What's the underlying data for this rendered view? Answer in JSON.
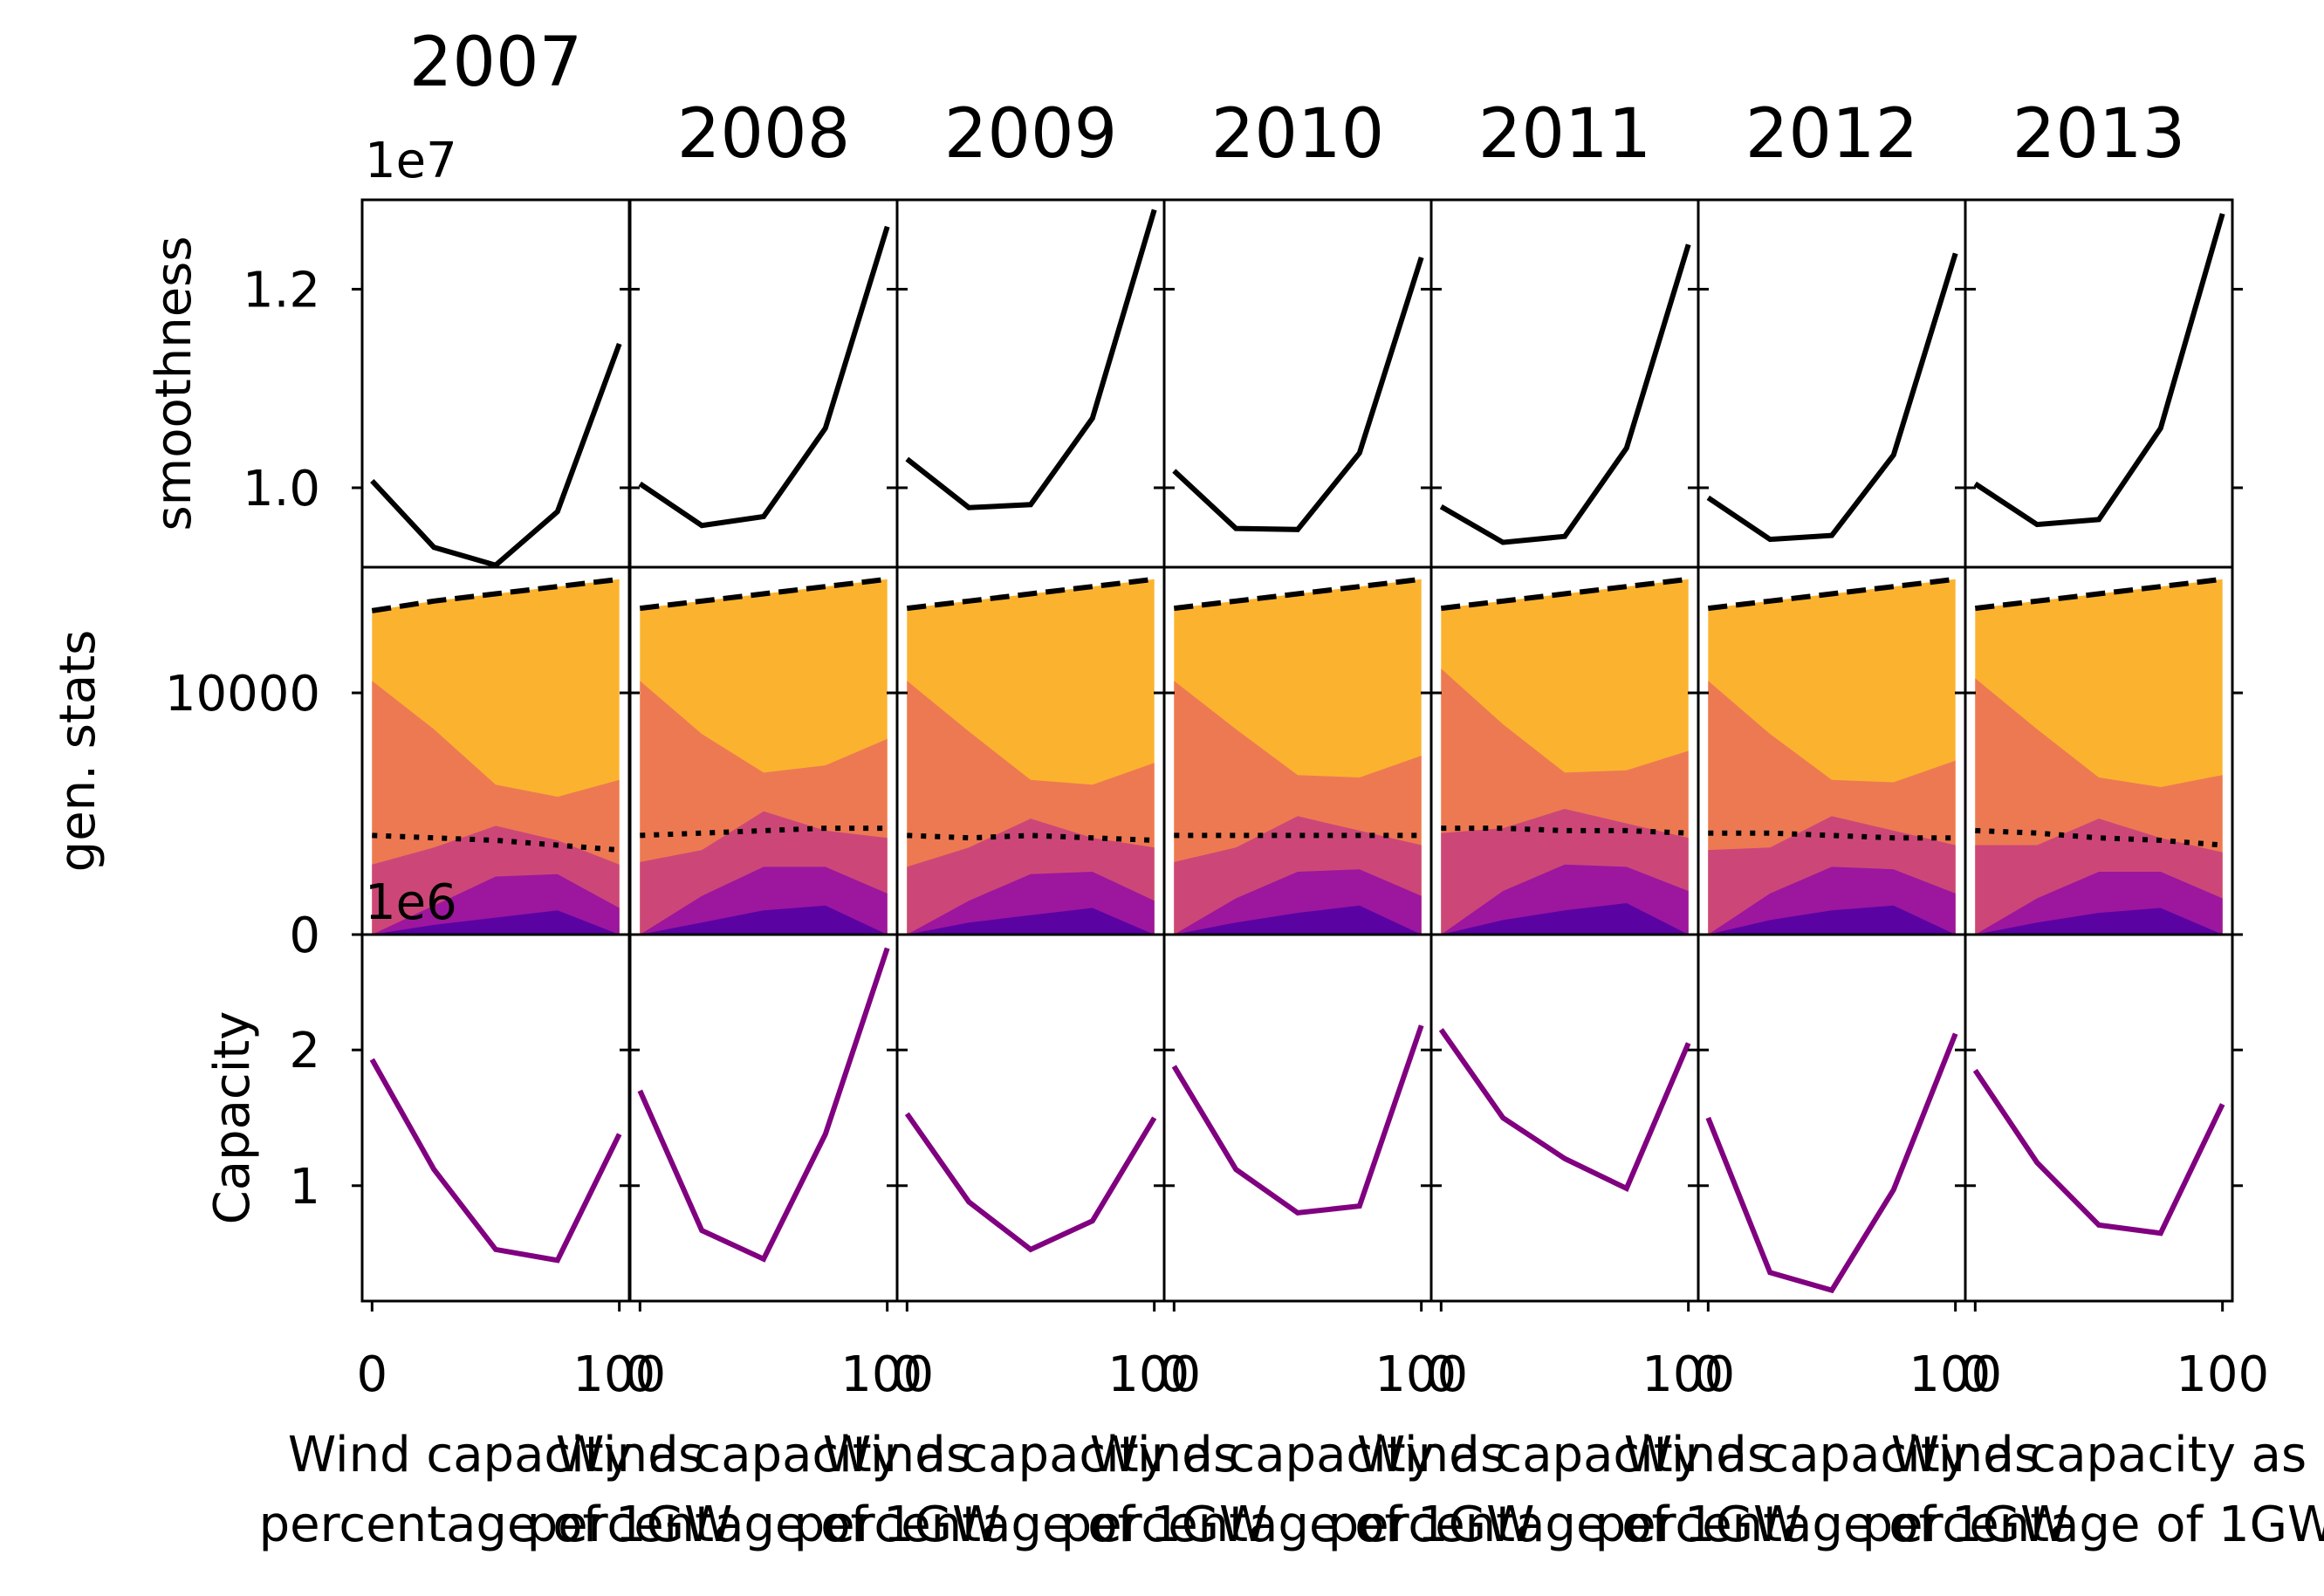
{
  "figure": {
    "offset_labels": {
      "smoothness": "1e7",
      "capacity": "1e6"
    }
  },
  "chart_data": [
    {
      "type": "line",
      "row": "smoothness",
      "ylabel": "smoothness",
      "yticks": [
        1.0,
        1.2
      ],
      "ytick_labels": [
        "1.0",
        "1.2"
      ],
      "ylim": [
        0.92,
        1.29
      ],
      "xlim": [
        -4,
        104
      ],
      "x": [
        0,
        25,
        50,
        75,
        100
      ],
      "series": [
        {
          "panel": "2007",
          "color": "#000000",
          "values": [
            1.007,
            0.94,
            0.922,
            0.976,
            1.145
          ]
        },
        {
          "panel": "2008",
          "color": "#000000",
          "values": [
            1.004,
            0.962,
            0.971,
            1.06,
            1.263
          ]
        },
        {
          "panel": "2009",
          "color": "#000000",
          "values": [
            1.029,
            0.98,
            0.983,
            1.07,
            1.28
          ]
        },
        {
          "panel": "2010",
          "color": "#000000",
          "values": [
            1.017,
            0.959,
            0.958,
            1.035,
            1.232
          ]
        },
        {
          "panel": "2011",
          "color": "#000000",
          "values": [
            0.981,
            0.945,
            0.951,
            1.04,
            1.245
          ]
        },
        {
          "panel": "2012",
          "color": "#000000",
          "values": [
            0.99,
            0.948,
            0.952,
            1.033,
            1.236
          ]
        },
        {
          "panel": "2013",
          "color": "#000000",
          "values": [
            1.004,
            0.963,
            0.968,
            1.06,
            1.276
          ]
        }
      ]
    },
    {
      "type": "area",
      "row": "gen. stats",
      "ylabel": "gen. stats",
      "yticks": [
        0,
        10000
      ],
      "ytick_labels": [
        "0",
        "10000"
      ],
      "ylim": [
        0,
        15200
      ],
      "xlim": [
        -4,
        104
      ],
      "x": [
        0,
        25,
        50,
        75,
        100
      ],
      "layer_colors": [
        "#5b02a3",
        "#9c179e",
        "#cc4778",
        "#ed7953",
        "#fbb32f"
      ],
      "line_styles": {
        "total": "dashed",
        "reference": "dotted"
      },
      "panels": [
        {
          "panel": "2007",
          "stacks": [
            [
              0,
              400,
              700,
              1000,
              0
            ],
            [
              0,
              1200,
              2400,
              2500,
              1100
            ],
            [
              2900,
              3600,
              4500,
              3900,
              2900
            ],
            [
              10500,
              8500,
              6200,
              5700,
              6400
            ],
            [
              13400,
              13800,
              14100,
              14400,
              14700
            ]
          ],
          "total": [
            13400,
            13800,
            14100,
            14400,
            14700
          ],
          "reference": [
            4100,
            4000,
            3900,
            3700,
            3500
          ]
        },
        {
          "panel": "2008",
          "stacks": [
            [
              0,
              500,
              1000,
              1200,
              0
            ],
            [
              0,
              1600,
              2800,
              2800,
              1700
            ],
            [
              3000,
              3500,
              5100,
              4300,
              4000
            ],
            [
              10500,
              8300,
              6700,
              7000,
              8100
            ],
            [
              13500,
              13800,
              14100,
              14400,
              14700
            ]
          ],
          "total": [
            13500,
            13800,
            14100,
            14400,
            14700
          ],
          "reference": [
            4100,
            4200,
            4300,
            4400,
            4400
          ]
        },
        {
          "panel": "2009",
          "stacks": [
            [
              0,
              500,
              800,
              1100,
              0
            ],
            [
              0,
              1400,
              2500,
              2600,
              1400
            ],
            [
              2800,
              3600,
              4800,
              4000,
              3600
            ],
            [
              10500,
              8400,
              6400,
              6200,
              7100
            ],
            [
              13500,
              13800,
              14100,
              14400,
              14700
            ]
          ],
          "total": [
            13500,
            13800,
            14100,
            14400,
            14700
          ],
          "reference": [
            4100,
            4000,
            4100,
            4000,
            3900
          ]
        },
        {
          "panel": "2010",
          "stacks": [
            [
              0,
              500,
              900,
              1200,
              0
            ],
            [
              0,
              1500,
              2600,
              2700,
              1600
            ],
            [
              3000,
              3600,
              4900,
              4300,
              3700
            ],
            [
              10500,
              8500,
              6600,
              6500,
              7400
            ],
            [
              13500,
              13800,
              14100,
              14400,
              14700
            ]
          ],
          "total": [
            13500,
            13800,
            14100,
            14400,
            14700
          ],
          "reference": [
            4100,
            4100,
            4100,
            4100,
            4100
          ]
        },
        {
          "panel": "2011",
          "stacks": [
            [
              0,
              600,
              1000,
              1300,
              0
            ],
            [
              0,
              1800,
              2900,
              2800,
              1800
            ],
            [
              4200,
              4400,
              5200,
              4600,
              4000
            ],
            [
              11000,
              8700,
              6700,
              6800,
              7600
            ],
            [
              13500,
              13800,
              14100,
              14400,
              14700
            ]
          ],
          "total": [
            13500,
            13800,
            14100,
            14400,
            14700
          ],
          "reference": [
            4400,
            4400,
            4300,
            4300,
            4200
          ]
        },
        {
          "panel": "2012",
          "stacks": [
            [
              0,
              600,
              1000,
              1200,
              0
            ],
            [
              0,
              1700,
              2800,
              2700,
              1700
            ],
            [
              3500,
              3600,
              4900,
              4300,
              3700
            ],
            [
              10500,
              8300,
              6400,
              6300,
              7200
            ],
            [
              13500,
              13800,
              14100,
              14400,
              14700
            ]
          ],
          "total": [
            13500,
            13800,
            14100,
            14400,
            14700
          ],
          "reference": [
            4200,
            4200,
            4100,
            4000,
            4000
          ]
        },
        {
          "panel": "2013",
          "stacks": [
            [
              0,
              500,
              900,
              1100,
              0
            ],
            [
              0,
              1500,
              2600,
              2600,
              1500
            ],
            [
              3700,
              3700,
              4800,
              4000,
              3400
            ],
            [
              10600,
              8500,
              6500,
              6100,
              6600
            ],
            [
              13500,
              13800,
              14100,
              14400,
              14700
            ]
          ],
          "total": [
            13500,
            13800,
            14100,
            14400,
            14700
          ],
          "reference": [
            4300,
            4200,
            4000,
            3900,
            3700
          ]
        }
      ]
    },
    {
      "type": "line",
      "row": "Capacity",
      "ylabel": "Capacity",
      "yticks": [
        1,
        2
      ],
      "ytick_labels": [
        "1",
        "2"
      ],
      "ylim": [
        0.15,
        2.85
      ],
      "xlim": [
        -4,
        104
      ],
      "xticks": [
        0,
        100
      ],
      "xtick_labels": [
        "0",
        "100"
      ],
      "x": [
        0,
        25,
        50,
        75,
        100
      ],
      "series": [
        {
          "panel": "2007",
          "color": "#800080",
          "values": [
            1.93,
            1.12,
            0.53,
            0.45,
            1.38
          ]
        },
        {
          "panel": "2008",
          "color": "#800080",
          "values": [
            1.7,
            0.67,
            0.46,
            1.38,
            2.75
          ]
        },
        {
          "panel": "2009",
          "color": "#800080",
          "values": [
            1.53,
            0.88,
            0.53,
            0.74,
            1.5
          ]
        },
        {
          "panel": "2010",
          "color": "#800080",
          "values": [
            1.88,
            1.12,
            0.8,
            0.85,
            2.18
          ]
        },
        {
          "panel": "2011",
          "color": "#800080",
          "values": [
            2.15,
            1.5,
            1.2,
            0.98,
            2.05
          ]
        },
        {
          "panel": "2012",
          "color": "#800080",
          "values": [
            1.5,
            0.36,
            0.23,
            0.97,
            2.12
          ]
        },
        {
          "panel": "2013",
          "color": "#800080",
          "values": [
            1.85,
            1.17,
            0.71,
            0.65,
            1.6
          ]
        }
      ]
    }
  ],
  "columns": [
    {
      "title": "2007",
      "xlabel_line1": "Wind capacity as",
      "xlabel_line2": "percentage of 1GW"
    },
    {
      "title": "2008",
      "xlabel_line1": "Wind capacity as",
      "xlabel_line2": "percentage of 1GW"
    },
    {
      "title": "2009",
      "xlabel_line1": "Wind capacity as",
      "xlabel_line2": "percentage of 1GW"
    },
    {
      "title": "2010",
      "xlabel_line1": "Wind capacity as",
      "xlabel_line2": "percentage of 1GW"
    },
    {
      "title": "2011",
      "xlabel_line1": "Wind capacity as",
      "xlabel_line2": "percentage of 1GW"
    },
    {
      "title": "2012",
      "xlabel_line1": "Wind capacity as",
      "xlabel_line2": "percentage of 1GW"
    },
    {
      "title": "2013",
      "xlabel_line1": "Wind capacity as",
      "xlabel_line2": "percentage of 1GW"
    }
  ]
}
